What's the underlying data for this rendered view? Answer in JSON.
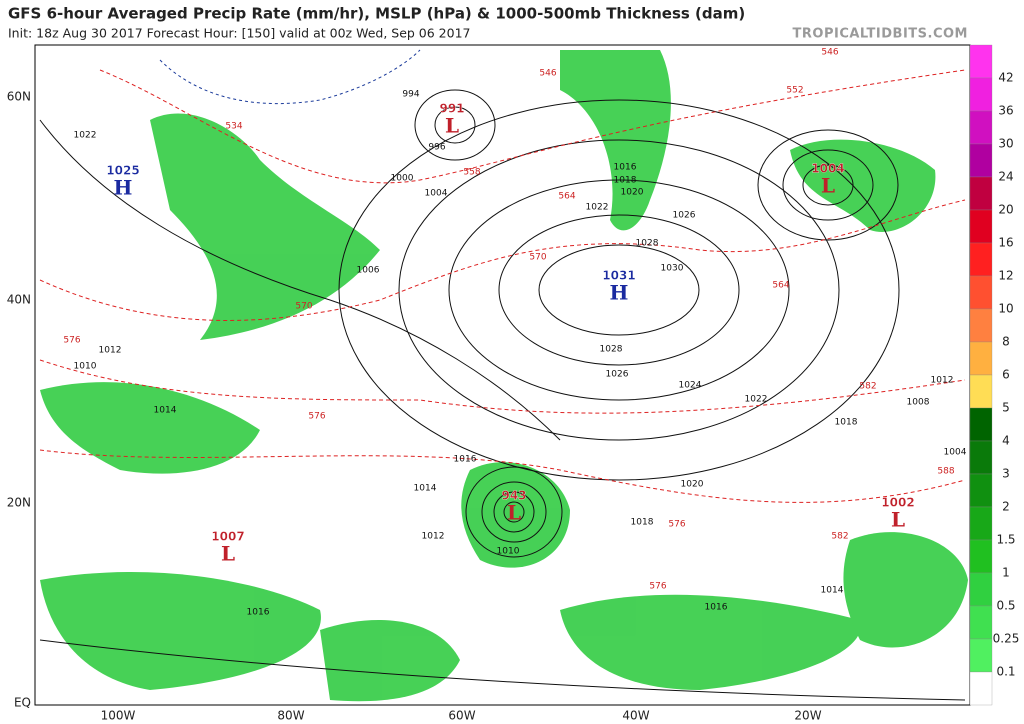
{
  "header": {
    "title": "GFS 6-hour Averaged Precip Rate (mm/hr), MSLP (hPa) & 1000-500mb Thickness (dam)",
    "subtitle": "Init: 18z Aug 30 2017   Forecast Hour: [150]   valid at 00z Wed, Sep 06 2017",
    "credit": "TROPICALTIDBITS.COM"
  },
  "axes": {
    "lat": [
      "60N",
      "40N",
      "20N",
      "EQ"
    ],
    "lon": [
      "100W",
      "80W",
      "60W",
      "40W",
      "20W"
    ]
  },
  "centers": [
    {
      "value": "1025",
      "letter": "H",
      "color": "#1a2aa0"
    },
    {
      "value": "991",
      "letter": "L",
      "color": "#c0202a"
    },
    {
      "value": "1004",
      "letter": "L",
      "color": "#c0202a"
    },
    {
      "value": "1031",
      "letter": "H",
      "color": "#1a2aa0"
    },
    {
      "value": "943",
      "letter": "L",
      "color": "#c0202a"
    },
    {
      "value": "1007",
      "letter": "L",
      "color": "#c0202a"
    },
    {
      "value": "1002",
      "letter": "L",
      "color": "#c0202a"
    }
  ],
  "isobar_labels": [
    "1022",
    "994",
    "996",
    "1000",
    "1004",
    "1006",
    "1016",
    "1018",
    "1020",
    "1022",
    "1026",
    "1028",
    "1030",
    "1028",
    "1026",
    "1024",
    "1022",
    "1020",
    "1018",
    "1016",
    "1014",
    "1012",
    "1010",
    "1012",
    "1010",
    "1014",
    "1016",
    "1016",
    "1014",
    "1012",
    "1018",
    "1008",
    "1004"
  ],
  "thickness_labels": [
    "534",
    "546",
    "546",
    "552",
    "558",
    "564",
    "570",
    "564",
    "570",
    "576",
    "576",
    "582",
    "588",
    "576",
    "576",
    "582"
  ],
  "colorbar": {
    "levels": [
      "42",
      "36",
      "30",
      "24",
      "20",
      "16",
      "12",
      "10",
      "8",
      "6",
      "5",
      "4",
      "3",
      "2",
      "1.5",
      "1",
      "0.5",
      "0.25",
      "0.1"
    ],
    "colors": [
      "#ff33ee",
      "#f020e0",
      "#d010c0",
      "#b000a0",
      "#c00040",
      "#e00020",
      "#ff2020",
      "#ff5030",
      "#ff8040",
      "#ffb040",
      "#ffdd55",
      "#006400",
      "#0a7a0a",
      "#109010",
      "#18a818",
      "#20c020",
      "#30d040",
      "#40e050",
      "#50f060",
      "#ffffff"
    ]
  }
}
